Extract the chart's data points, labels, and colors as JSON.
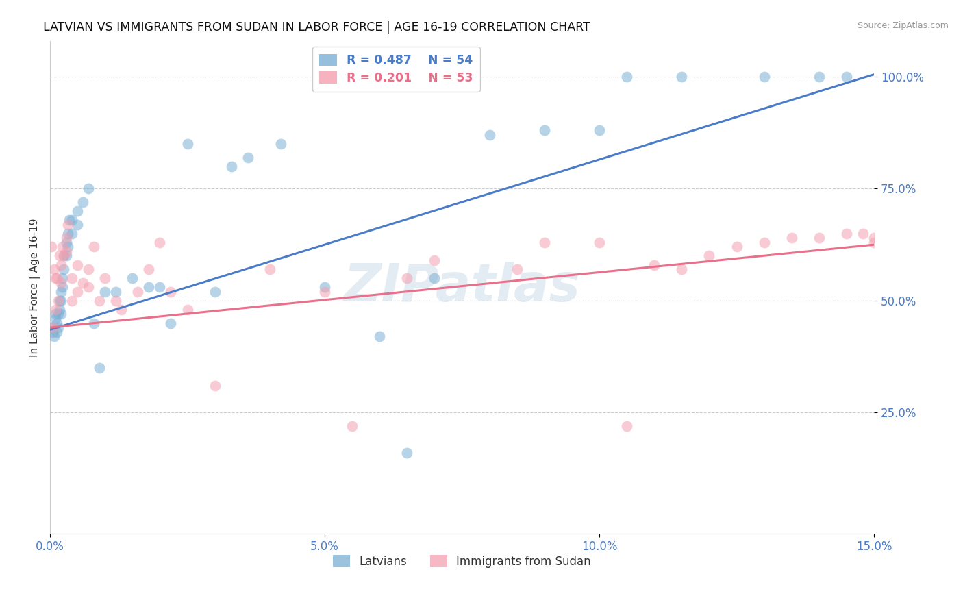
{
  "title": "LATVIAN VS IMMIGRANTS FROM SUDAN IN LABOR FORCE | AGE 16-19 CORRELATION CHART",
  "source": "Source: ZipAtlas.com",
  "ylabel": "In Labor Force | Age 16-19",
  "xlim": [
    0.0,
    0.15
  ],
  "ylim": [
    -0.02,
    1.08
  ],
  "xticks": [
    0.0,
    0.05,
    0.1,
    0.15
  ],
  "xticklabels": [
    "0.0%",
    "5.0%",
    "10.0%",
    "15.0%"
  ],
  "yticks": [
    0.25,
    0.5,
    0.75,
    1.0
  ],
  "yticklabels": [
    "25.0%",
    "50.0%",
    "75.0%",
    "100.0%"
  ],
  "blue_color": "#7BAFD4",
  "pink_color": "#F4A0B0",
  "blue_line_color": "#4A7CC7",
  "pink_line_color": "#E8708A",
  "watermark": "ZIPatlas",
  "legend_label_blue": "Latvians",
  "legend_label_pink": "Immigrants from Sudan",
  "blue_line_x0": 0.0,
  "blue_line_y0": 0.435,
  "blue_line_x1": 0.15,
  "blue_line_y1": 1.005,
  "pink_line_x0": 0.0,
  "pink_line_y0": 0.44,
  "pink_line_x1": 0.15,
  "pink_line_y1": 0.625,
  "blue_x": [
    0.0003,
    0.0005,
    0.0008,
    0.001,
    0.001,
    0.0012,
    0.0013,
    0.0015,
    0.0015,
    0.0017,
    0.0018,
    0.002,
    0.002,
    0.002,
    0.0022,
    0.0023,
    0.0025,
    0.0025,
    0.003,
    0.003,
    0.0032,
    0.0033,
    0.0035,
    0.004,
    0.004,
    0.005,
    0.005,
    0.006,
    0.007,
    0.008,
    0.009,
    0.01,
    0.012,
    0.015,
    0.018,
    0.02,
    0.022,
    0.025,
    0.03,
    0.033,
    0.036,
    0.042,
    0.05,
    0.06,
    0.065,
    0.07,
    0.08,
    0.09,
    0.1,
    0.105,
    0.115,
    0.13,
    0.14,
    0.145
  ],
  "blue_y": [
    0.44,
    0.43,
    0.42,
    0.46,
    0.47,
    0.43,
    0.45,
    0.47,
    0.44,
    0.5,
    0.48,
    0.52,
    0.5,
    0.47,
    0.55,
    0.53,
    0.6,
    0.57,
    0.63,
    0.6,
    0.65,
    0.62,
    0.68,
    0.68,
    0.65,
    0.7,
    0.67,
    0.72,
    0.75,
    0.45,
    0.35,
    0.52,
    0.52,
    0.55,
    0.53,
    0.53,
    0.45,
    0.85,
    0.52,
    0.8,
    0.82,
    0.85,
    0.53,
    0.42,
    0.16,
    0.55,
    0.87,
    0.88,
    0.88,
    1.0,
    1.0,
    1.0,
    1.0,
    1.0
  ],
  "pink_x": [
    0.0003,
    0.0005,
    0.0008,
    0.001,
    0.001,
    0.0013,
    0.0015,
    0.0017,
    0.002,
    0.002,
    0.0022,
    0.0025,
    0.003,
    0.003,
    0.0033,
    0.004,
    0.004,
    0.005,
    0.005,
    0.006,
    0.007,
    0.007,
    0.008,
    0.009,
    0.01,
    0.012,
    0.013,
    0.016,
    0.018,
    0.02,
    0.022,
    0.025,
    0.03,
    0.04,
    0.05,
    0.055,
    0.065,
    0.07,
    0.085,
    0.09,
    0.1,
    0.105,
    0.11,
    0.115,
    0.12,
    0.125,
    0.13,
    0.135,
    0.14,
    0.145,
    0.148,
    0.15,
    0.15
  ],
  "pink_y": [
    0.62,
    0.44,
    0.57,
    0.55,
    0.48,
    0.55,
    0.5,
    0.6,
    0.58,
    0.54,
    0.62,
    0.6,
    0.64,
    0.61,
    0.67,
    0.55,
    0.5,
    0.58,
    0.52,
    0.54,
    0.57,
    0.53,
    0.62,
    0.5,
    0.55,
    0.5,
    0.48,
    0.52,
    0.57,
    0.63,
    0.52,
    0.48,
    0.31,
    0.57,
    0.52,
    0.22,
    0.55,
    0.59,
    0.57,
    0.63,
    0.63,
    0.22,
    0.58,
    0.57,
    0.6,
    0.62,
    0.63,
    0.64,
    0.64,
    0.65,
    0.65,
    0.64,
    0.63
  ]
}
